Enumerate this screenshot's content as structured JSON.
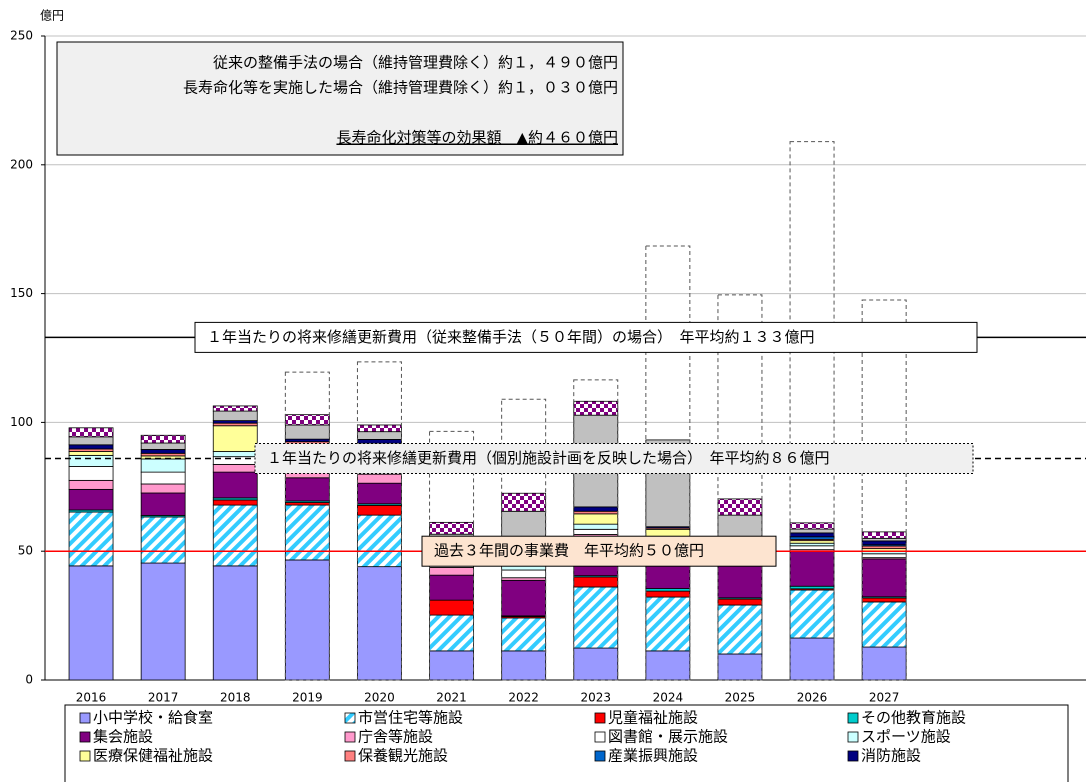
{
  "chart_data": {
    "type": "stacked_bar",
    "y_label": "億円",
    "categories": [
      "2016",
      "2017",
      "2018",
      "2019",
      "2020",
      "2021",
      "2022",
      "2023",
      "2024",
      "2025",
      "2026",
      "2027"
    ],
    "ylim": [
      0,
      250
    ],
    "yticks": [
      0,
      50,
      100,
      150,
      200,
      250
    ],
    "grid": true,
    "series": [
      {
        "name": "小中学校・給食室",
        "color": "#9999ff",
        "values": [
          44.3,
          45.4,
          44.3,
          46.6,
          44,
          11.3,
          11.3,
          12.4,
          11.3,
          10.1,
          16.3,
          12.8
        ]
      },
      {
        "name": "市営住宅等施設",
        "color": "#33ccff",
        "pattern": "hatch",
        "values": [
          20.9,
          17.9,
          23.6,
          21.3,
          20,
          13.9,
          12.8,
          23.7,
          20.9,
          19,
          18.6,
          17.5
        ]
      },
      {
        "name": "児童福祉施設",
        "color": "#ff0000",
        "values": [
          0,
          0,
          2,
          1,
          3.8,
          5.8,
          0.5,
          3.9,
          2.3,
          2.3,
          0.5,
          1.5
        ]
      },
      {
        "name": "その他教育施設",
        "color": "#00cccc",
        "values": [
          0.8,
          0.6,
          0.8,
          0.6,
          0.6,
          0,
          0.3,
          0.5,
          1,
          0.5,
          1,
          0.5
        ]
      },
      {
        "name": "集会施設",
        "color": "#800080",
        "values": [
          8,
          8.7,
          10,
          9,
          8,
          9.7,
          13.8,
          14,
          15,
          12.4,
          13.7,
          14.7
        ]
      },
      {
        "name": "庁舎等施設",
        "color": "#ff99cc",
        "values": [
          3.5,
          3.5,
          3,
          3,
          3.5,
          3,
          1,
          2,
          1,
          0,
          0.5,
          0.5
        ]
      },
      {
        "name": "図書館・展示施設",
        "color": "#ffffff",
        "values": [
          5.4,
          4.6,
          3,
          3,
          5,
          4,
          3,
          2,
          2,
          4,
          1.5,
          1.5
        ]
      },
      {
        "name": "スポーツ施設",
        "color": "#ccffff",
        "values": [
          4.3,
          5.1,
          2,
          3,
          4,
          4,
          2,
          2,
          2,
          2,
          1,
          1
        ]
      },
      {
        "name": "医療保健福祉施設",
        "color": "#ffff99",
        "values": [
          1.5,
          1.2,
          10,
          4,
          2,
          2,
          1,
          4,
          3,
          1,
          1,
          1
        ]
      },
      {
        "name": "保養観光施設",
        "color": "#ff8080",
        "values": [
          1,
          1,
          1,
          1,
          1,
          1,
          0.5,
          1,
          0.5,
          0.5,
          0.5,
          1
        ]
      },
      {
        "name": "産業振興施設",
        "color": "#0066cc",
        "values": [
          0,
          0,
          0,
          0,
          0,
          0,
          0,
          0,
          0,
          0,
          1,
          0.5
        ]
      },
      {
        "name": "消防施設",
        "color": "#000080",
        "values": [
          1.6,
          1.5,
          1,
          1,
          1.5,
          1,
          0.5,
          1.7,
          0.5,
          1,
          1.5,
          1.5
        ]
      },
      {
        "color": "#c0c0c0",
        "values": [
          3.1,
          2.5,
          3.7,
          5.5,
          3,
          0.9,
          18.8,
          35.6,
          33.7,
          11.2,
          1.5,
          1
        ]
      },
      {
        "color": "#800080",
        "pattern": "checker",
        "values": [
          3.5,
          3,
          2,
          4,
          2.6,
          4.6,
          7,
          5.4,
          0,
          6.3,
          2.4,
          2.5
        ]
      }
    ],
    "conventional_totals": [
      null,
      null,
      null,
      119.5,
      123.5,
      96.5,
      109,
      116.5,
      168.5,
      149.5,
      209,
      147.5
    ],
    "reference_lines": [
      {
        "value": 133,
        "color": "#000000",
        "style": "solid",
        "label": "１年当たりの将来修繕更新費用（従来整備手法（５０年間）の場合）　年平均約１３３億円"
      },
      {
        "value": 86,
        "color": "#000000",
        "style": "dashed",
        "label": "１年当たりの将来修繕更新費用（個別施設計画を反映した場合）　年平均約８６億円"
      },
      {
        "value": 50,
        "color": "#ff0000",
        "style": "solid",
        "label": "過去３年間の事業費　年平均約５０億円"
      }
    ],
    "summary": [
      "従来の整備手法の場合（維持管理費除く）約１，４９０億円",
      "長寿命化等を実施した場合（維持管理費除く）約１，０３０億円",
      "長寿命化対策等の効果額　▲約４６０億円"
    ]
  }
}
